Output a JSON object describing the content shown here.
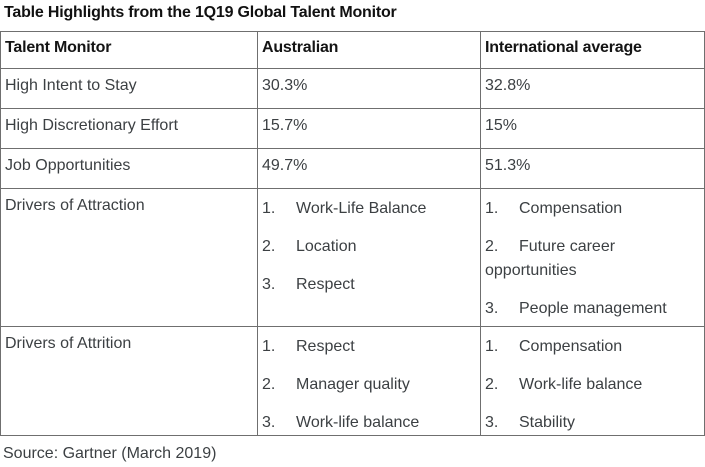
{
  "title": "Table Highlights from the 1Q19 Global Talent Monitor",
  "source": "Source: Gartner (March 2019)",
  "colors": {
    "text": "#3c4043",
    "title": "#111111",
    "border": "#6f6f6f",
    "background": "#ffffff"
  },
  "table": {
    "headers": [
      "Talent Monitor",
      "Australian",
      "International average"
    ],
    "metric_rows": [
      {
        "label": "High Intent to Stay",
        "australian": "30.3%",
        "international": "32.8%"
      },
      {
        "label": "High Discretionary Effort",
        "australian": "15.7%",
        "international": "15%"
      },
      {
        "label": "Job Opportunities",
        "australian": "49.7%",
        "international": "51.3%"
      }
    ],
    "list_rows": [
      {
        "label": "Drivers of Attraction",
        "australian": [
          {
            "num": "1.",
            "text": "Work-Life Balance"
          },
          {
            "num": "2.",
            "text": "Location"
          },
          {
            "num": "3.",
            "text": "Respect"
          }
        ],
        "international": [
          {
            "num": "1.",
            "text": "Compensation"
          },
          {
            "num": "2.",
            "text": "Future career opportunities"
          },
          {
            "num": "3.",
            "text": "People management"
          }
        ]
      },
      {
        "label": "Drivers of Attrition",
        "australian": [
          {
            "num": "1.",
            "text": "Respect"
          },
          {
            "num": "2.",
            "text": "Manager quality"
          },
          {
            "num": "3.",
            "text": "Work-life balance"
          }
        ],
        "international": [
          {
            "num": "1.",
            "text": "Compensation"
          },
          {
            "num": "2.",
            "text": "Work-life balance"
          },
          {
            "num": "3.",
            "text": "Stability"
          }
        ]
      }
    ]
  }
}
